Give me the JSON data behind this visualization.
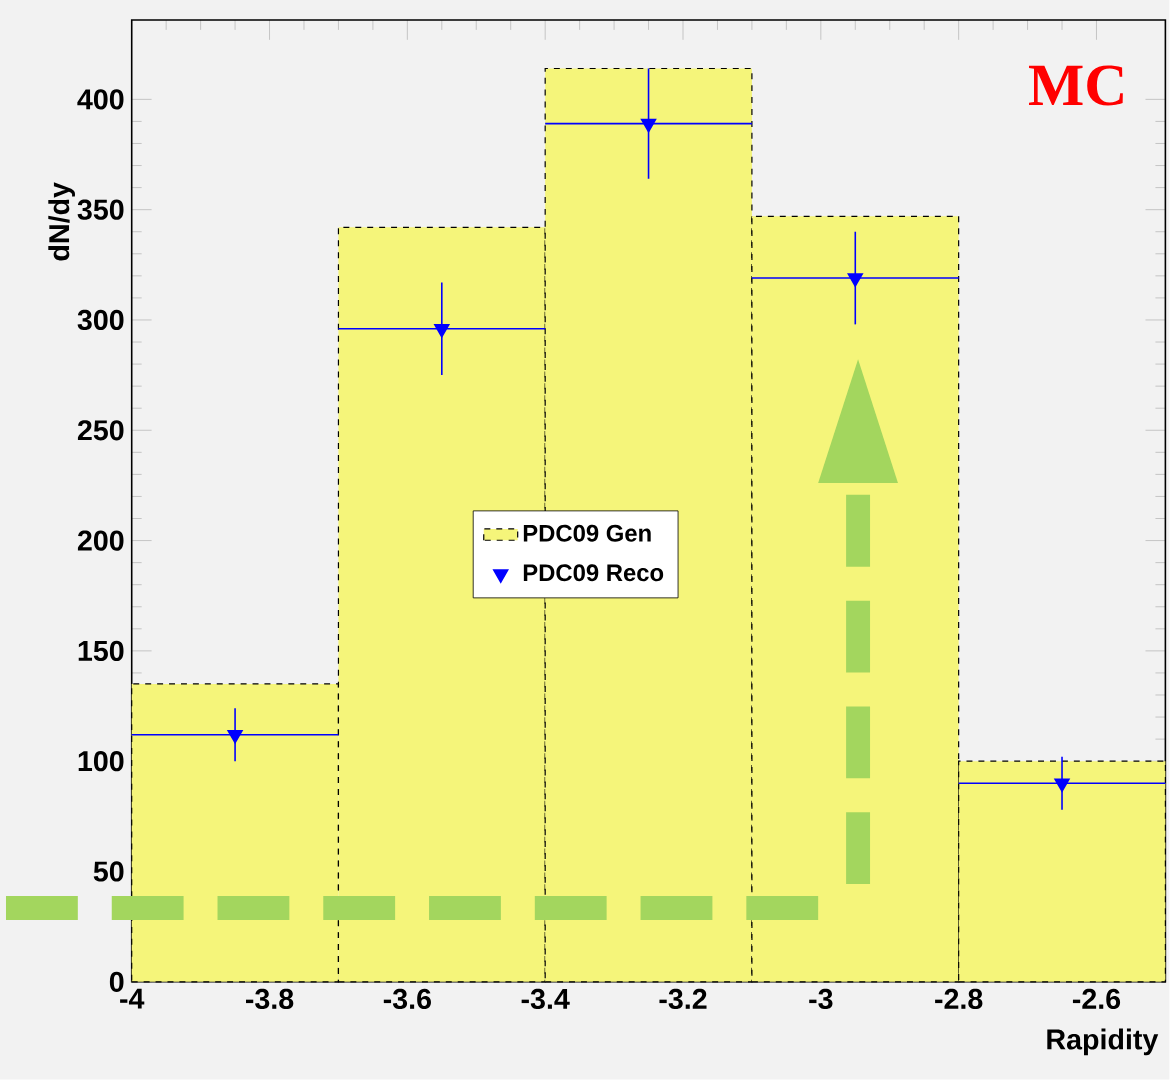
{
  "chart_data": {
    "type": "histogram",
    "xlabel": "Rapidity",
    "ylabel": "dN/dy",
    "bins": [
      -4,
      -3.7,
      -3.4,
      -3.1,
      -2.8,
      -2.5
    ],
    "series": [
      {
        "name": "PDC09 Gen",
        "type": "histogram",
        "color": "#f5f57a",
        "line_style": "dashed",
        "values": [
          135,
          342,
          414,
          347,
          100
        ]
      },
      {
        "name": "PDC09 Reco",
        "type": "scatter",
        "color": "#0000ff",
        "marker": "triangle",
        "x": [
          -3.85,
          -3.55,
          -3.25,
          -2.95,
          -2.65
        ],
        "values": [
          112,
          296,
          389,
          319,
          90
        ],
        "errors": [
          12,
          21,
          25,
          21,
          12
        ],
        "xerrors": [
          0.15,
          0.15,
          0.15,
          0.15,
          0.15
        ]
      }
    ],
    "xlim": [
      -4,
      -2.5
    ],
    "ylim": [
      0,
      436
    ],
    "xticks": [
      -4,
      -3.8,
      -3.6,
      -3.4,
      -3.2,
      -3,
      -2.8,
      -2.6
    ],
    "yticks": [
      0,
      50,
      100,
      150,
      200,
      250,
      300,
      350,
      400
    ],
    "legend": "center",
    "grid": false,
    "annotations": [
      "MC"
    ]
  }
}
